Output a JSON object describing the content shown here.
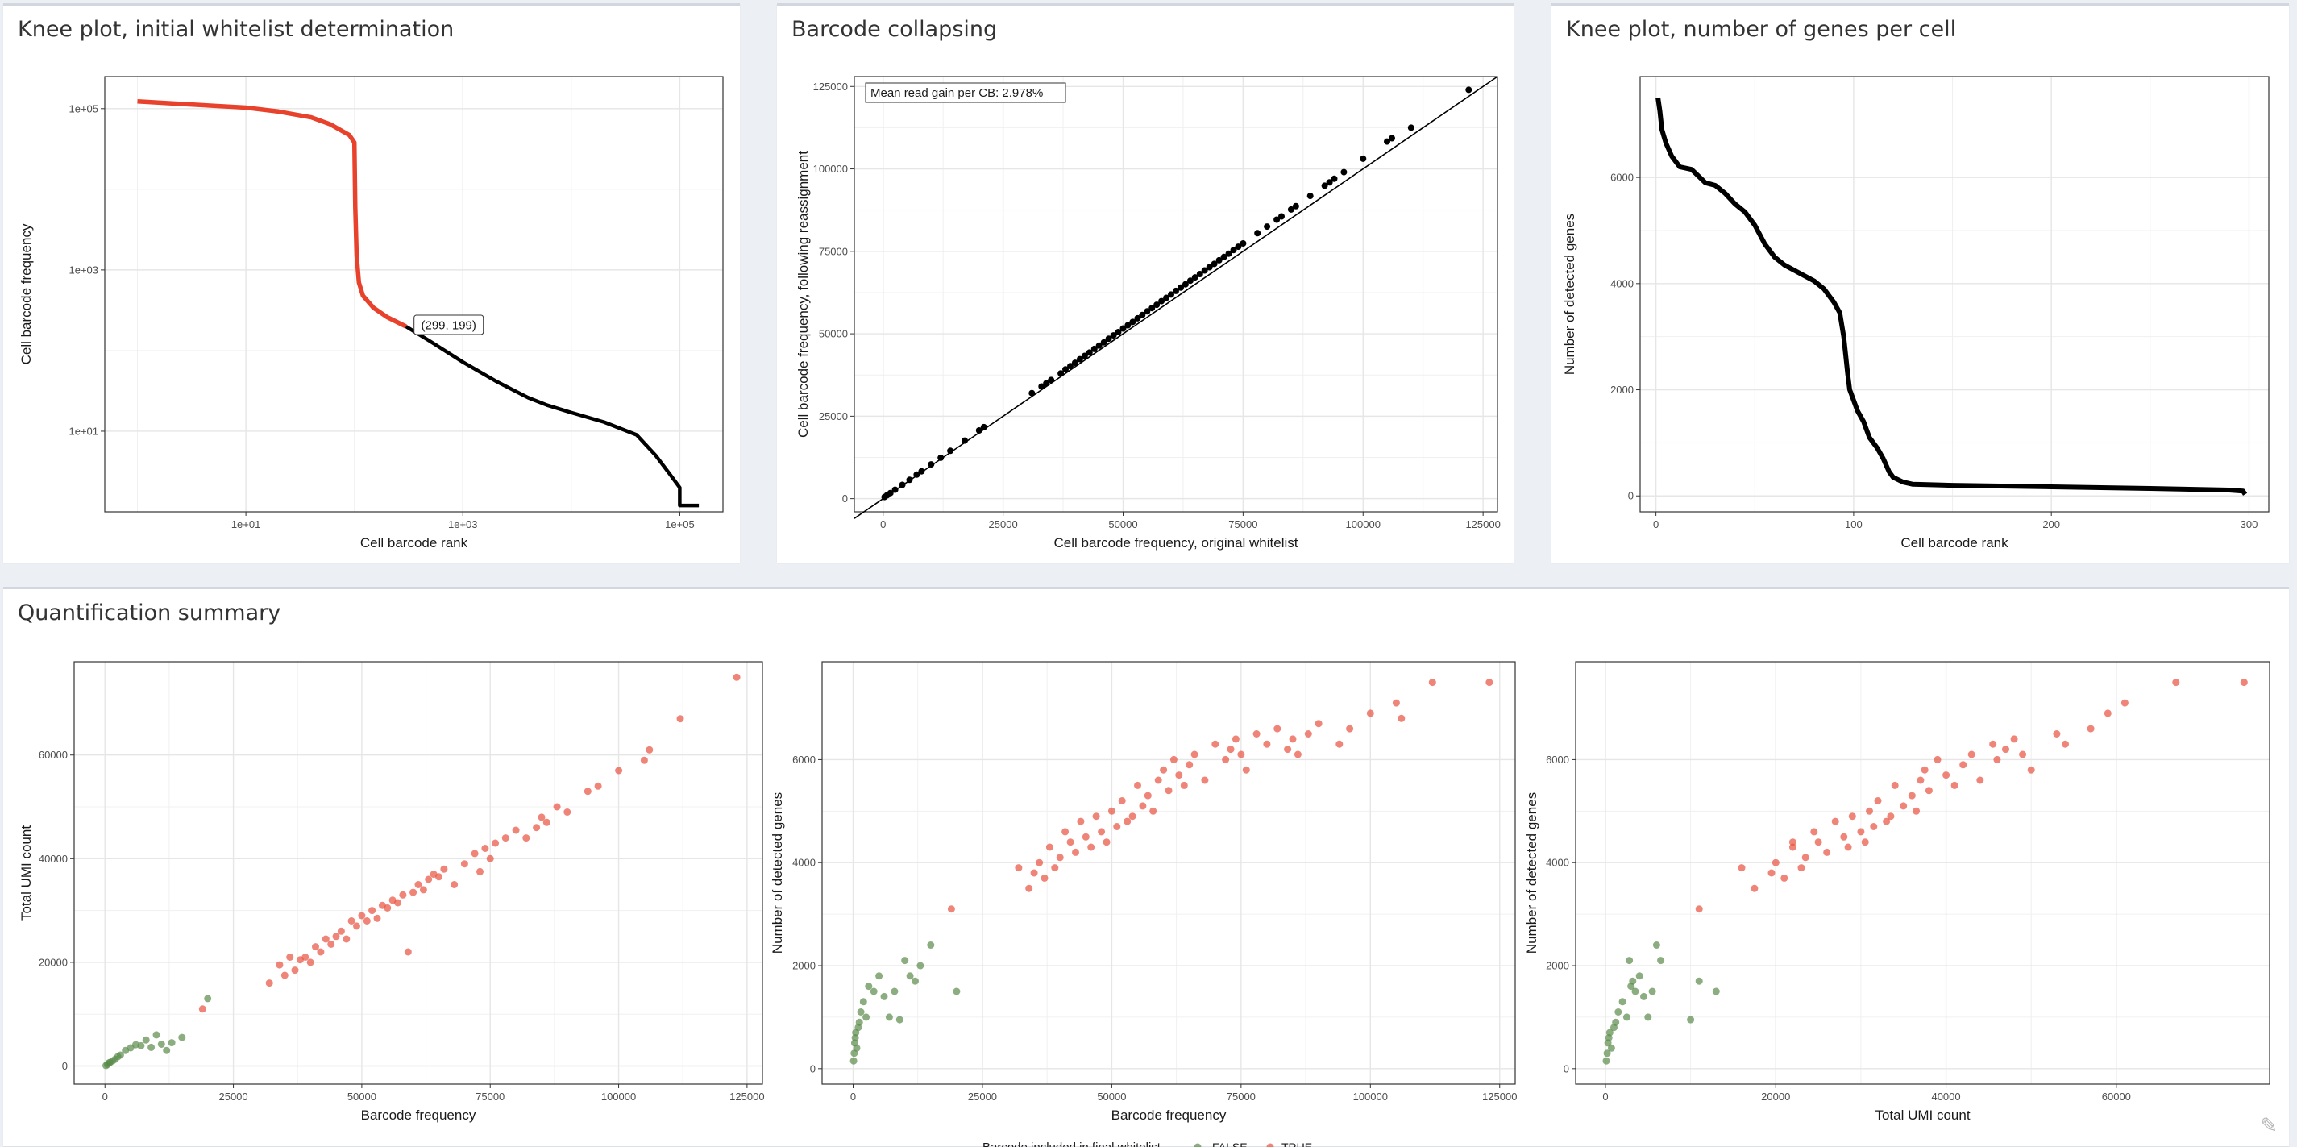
{
  "panels": {
    "knee1": {
      "title": "Knee plot, initial whitelist determination",
      "xlabel": "Cell barcode rank",
      "ylabel": "Cell barcode frequency",
      "annotation": "(299, 199)"
    },
    "collapse": {
      "title": "Barcode collapsing",
      "xlabel": "Cell barcode frequency, original whitelist",
      "ylabel": "Cell barcode frequency, following reassignment",
      "annotation": "Mean read gain per CB: 2.978%"
    },
    "knee2": {
      "title": "Knee plot, number of genes per cell",
      "xlabel": "Cell barcode rank",
      "ylabel": "Number of detected genes"
    },
    "quant": {
      "title": "Quantification summary",
      "legend_title": "Barcode included in final whitelist",
      "legend_false": "FALSE",
      "legend_true": "TRUE"
    }
  },
  "colors": {
    "true": "#e8513f",
    "false": "#5a8a4a",
    "line": "#000000",
    "highlight": "#e8412c"
  },
  "chart_data": [
    {
      "id": "knee1",
      "type": "line",
      "log_x": true,
      "log_y": true,
      "title": "Knee plot, initial whitelist determination",
      "xlabel": "Cell barcode rank",
      "ylabel": "Cell barcode frequency",
      "xlim": [
        0.5,
        250000
      ],
      "ylim": [
        1.0,
        250000
      ],
      "xticks": [
        10,
        1000,
        100000
      ],
      "xtick_labels": [
        "1e+01",
        "1e+03",
        "1e+05"
      ],
      "yticks": [
        10,
        1000,
        100000
      ],
      "ytick_labels": [
        "1e+01",
        "1e+03",
        "1e+05"
      ],
      "series": [
        {
          "x": [
            1,
            3,
            10,
            20,
            40,
            60,
            90,
            100,
            102,
            105,
            110,
            120,
            150,
            200,
            299
          ],
          "y": [
            123000,
            113000,
            103000,
            92000,
            78000,
            64000,
            47000,
            38000,
            6000,
            1500,
            700,
            480,
            340,
            260,
            199
          ]
        },
        {
          "x": [
            299,
            500,
            1000,
            2000,
            4000,
            6000,
            10000,
            20000,
            40000,
            60000,
            80000,
            100000,
            100000,
            150000
          ],
          "y": [
            199,
            130,
            72,
            42,
            26,
            21,
            17,
            13,
            9,
            5,
            3,
            2,
            1.2,
            1.2
          ]
        }
      ],
      "annotation": {
        "x": 299,
        "y": 199,
        "text": "(299, 199)"
      }
    },
    {
      "id": "collapse",
      "type": "scatter",
      "title": "Barcode collapsing",
      "xlabel": "Cell barcode frequency, original whitelist",
      "ylabel": "Cell barcode frequency, following reassignment",
      "xlim": [
        -6000,
        128000
      ],
      "ylim": [
        -4000,
        128000
      ],
      "xticks": [
        0,
        25000,
        50000,
        75000,
        100000,
        125000
      ],
      "yticks": [
        0,
        25000,
        50000,
        75000,
        100000,
        125000
      ],
      "annotation": "Mean read gain per CB: 2.978%",
      "x": [
        300,
        800,
        1500,
        2500,
        4000,
        5500,
        7000,
        8000,
        10000,
        12000,
        14000,
        17000,
        20000,
        21000,
        31000,
        33000,
        34000,
        35000,
        37000,
        38000,
        39000,
        40000,
        41000,
        42000,
        43000,
        44000,
        45000,
        46000,
        47000,
        48000,
        49000,
        50000,
        51000,
        52000,
        53000,
        54000,
        55000,
        56000,
        57000,
        58000,
        59000,
        60000,
        61000,
        62000,
        63000,
        64000,
        65000,
        66000,
        67000,
        68000,
        69000,
        70000,
        71000,
        72000,
        73000,
        74000,
        75000,
        78000,
        80000,
        82000,
        83000,
        85000,
        86000,
        89000,
        92000,
        93000,
        94000,
        96000,
        100000,
        105000,
        106000,
        110000,
        122000
      ],
      "y": [
        500,
        1000,
        1700,
        2700,
        4200,
        5700,
        7300,
        8300,
        10400,
        12400,
        14500,
        17600,
        20700,
        21700,
        32000,
        34000,
        35000,
        36000,
        38000,
        39200,
        40200,
        41200,
        42300,
        43300,
        44300,
        45400,
        46400,
        47400,
        48500,
        49500,
        50500,
        51600,
        52600,
        53600,
        54700,
        55700,
        56800,
        57800,
        58800,
        59900,
        60900,
        61900,
        63000,
        64000,
        65000,
        66100,
        67100,
        68100,
        69200,
        70200,
        71200,
        72300,
        73300,
        74300,
        75400,
        76400,
        77400,
        80500,
        82500,
        84600,
        85600,
        87700,
        88700,
        91800,
        94900,
        95900,
        97000,
        99000,
        103100,
        108300,
        109300,
        112500,
        124000
      ]
    },
    {
      "id": "knee2",
      "type": "line",
      "title": "Knee plot, number of genes per cell",
      "xlabel": "Cell barcode rank",
      "ylabel": "Number of detected genes",
      "xlim": [
        -8,
        310
      ],
      "ylim": [
        -300,
        7900
      ],
      "xticks": [
        0,
        100,
        200,
        300
      ],
      "yticks": [
        0,
        2000,
        4000,
        6000
      ],
      "x": [
        1,
        2,
        3,
        5,
        8,
        12,
        18,
        25,
        30,
        35,
        40,
        45,
        50,
        55,
        60,
        65,
        70,
        75,
        80,
        85,
        90,
        93,
        95,
        97,
        98,
        100,
        102,
        105,
        108,
        112,
        115,
        118,
        120,
        125,
        130,
        150,
        200,
        250,
        290,
        297,
        298
      ],
      "y": [
        7500,
        7250,
        6900,
        6650,
        6400,
        6200,
        6150,
        5900,
        5850,
        5700,
        5500,
        5350,
        5100,
        4750,
        4500,
        4350,
        4250,
        4150,
        4050,
        3900,
        3650,
        3450,
        3000,
        2300,
        2000,
        1800,
        1600,
        1400,
        1100,
        900,
        700,
        450,
        350,
        260,
        220,
        200,
        170,
        140,
        110,
        90,
        30
      ]
    },
    {
      "id": "quant1",
      "type": "scatter",
      "xlabel": "Barcode frequency",
      "ylabel": "Total UMI count",
      "xlim": [
        -6000,
        128000
      ],
      "ylim": [
        -3500,
        78000
      ],
      "xticks": [
        0,
        25000,
        50000,
        75000,
        100000,
        125000
      ],
      "yticks": [
        0,
        20000,
        40000,
        60000
      ],
      "series": [
        {
          "name": "FALSE",
          "x": [
            200,
            500,
            800,
            1000,
            1500,
            2000,
            2500,
            3000,
            4000,
            5000,
            6000,
            7000,
            8000,
            9000,
            10000,
            11000,
            12000,
            13000,
            15000,
            20000
          ],
          "y": [
            100,
            300,
            600,
            700,
            1000,
            1300,
            1800,
            2100,
            3000,
            3500,
            4100,
            3900,
            5000,
            3600,
            6000,
            4200,
            3000,
            4500,
            5500,
            13000
          ]
        },
        {
          "name": "TRUE",
          "x": [
            19000,
            32000,
            34000,
            35000,
            36000,
            37000,
            38000,
            39000,
            40000,
            41000,
            42000,
            43000,
            44000,
            45000,
            46000,
            47000,
            48000,
            49000,
            50000,
            51000,
            52000,
            53000,
            54000,
            55000,
            56000,
            57000,
            58000,
            59000,
            60000,
            61000,
            62000,
            63000,
            64000,
            65000,
            66000,
            68000,
            70000,
            72000,
            73000,
            74000,
            75000,
            76000,
            78000,
            80000,
            82000,
            84000,
            85000,
            86000,
            88000,
            90000,
            94000,
            96000,
            100000,
            105000,
            106000,
            112000,
            123000
          ],
          "y": [
            11000,
            16000,
            19500,
            17500,
            21000,
            18500,
            20500,
            21000,
            20000,
            23000,
            22000,
            24500,
            23500,
            25000,
            26000,
            24500,
            28000,
            27000,
            29000,
            28000,
            30000,
            28500,
            31000,
            30500,
            32000,
            31500,
            33000,
            22000,
            33500,
            35000,
            34000,
            36000,
            37000,
            36500,
            38000,
            35000,
            39000,
            41000,
            37500,
            42000,
            40000,
            43000,
            44000,
            45500,
            44000,
            46000,
            48000,
            47000,
            50000,
            49000,
            53000,
            54000,
            57000,
            59000,
            61000,
            67000,
            75000
          ]
        }
      ]
    },
    {
      "id": "quant2",
      "type": "scatter",
      "xlabel": "Barcode frequency",
      "ylabel": "Number of detected genes",
      "xlim": [
        -6000,
        128000
      ],
      "ylim": [
        -300,
        7900
      ],
      "xticks": [
        0,
        25000,
        50000,
        75000,
        100000,
        125000
      ],
      "yticks": [
        0,
        2000,
        4000,
        6000
      ],
      "series": [
        {
          "name": "FALSE",
          "x": [
            100,
            200,
            300,
            400,
            500,
            700,
            1000,
            1200,
            1500,
            2000,
            2500,
            3000,
            4000,
            5000,
            6000,
            7000,
            8000,
            9000,
            10000,
            11000,
            12000,
            13000,
            15000,
            20000
          ],
          "y": [
            150,
            300,
            500,
            600,
            700,
            400,
            800,
            900,
            1100,
            1300,
            1000,
            1600,
            1500,
            1800,
            1400,
            1000,
            1500,
            950,
            2100,
            1800,
            1700,
            2000,
            2400,
            1500
          ]
        },
        {
          "name": "TRUE",
          "x": [
            19000,
            32000,
            34000,
            35000,
            36000,
            37000,
            38000,
            39000,
            40000,
            41000,
            42000,
            43000,
            44000,
            45000,
            46000,
            47000,
            48000,
            49000,
            50000,
            51000,
            52000,
            53000,
            54000,
            55000,
            56000,
            57000,
            58000,
            59000,
            60000,
            61000,
            62000,
            63000,
            64000,
            65000,
            66000,
            68000,
            70000,
            72000,
            73000,
            74000,
            75000,
            76000,
            78000,
            80000,
            82000,
            84000,
            85000,
            86000,
            88000,
            90000,
            94000,
            96000,
            100000,
            105000,
            106000,
            112000,
            123000
          ],
          "y": [
            3100,
            3900,
            3500,
            3800,
            4000,
            3700,
            4300,
            3900,
            4100,
            4600,
            4400,
            4200,
            4800,
            4500,
            4300,
            4900,
            4600,
            4400,
            5000,
            4700,
            5200,
            4800,
            4900,
            5500,
            5100,
            5300,
            5000,
            5600,
            5800,
            5400,
            6000,
            5700,
            5500,
            5900,
            6100,
            5600,
            6300,
            6000,
            6200,
            6400,
            6100,
            5800,
            6500,
            6300,
            6600,
            6200,
            6400,
            6100,
            6500,
            6700,
            6300,
            6600,
            6900,
            7100,
            6800,
            7500,
            7500
          ]
        }
      ]
    },
    {
      "id": "quant3",
      "type": "scatter",
      "xlabel": "Total UMI count",
      "ylabel": "Number of detected genes",
      "xlim": [
        -3500,
        78000
      ],
      "ylim": [
        -300,
        7900
      ],
      "xticks": [
        0,
        20000,
        40000,
        60000
      ],
      "yticks": [
        0,
        2000,
        4000,
        6000
      ],
      "series": [
        {
          "name": "FALSE",
          "x": [
            100,
            200,
            300,
            400,
            500,
            700,
            1000,
            1200,
            1500,
            2000,
            2500,
            3000,
            3500,
            4000,
            4500,
            5000,
            5500,
            6000,
            2800,
            3200,
            6500,
            13000,
            11000,
            10000
          ],
          "y": [
            150,
            300,
            500,
            600,
            700,
            400,
            800,
            900,
            1100,
            1300,
            1000,
            1600,
            1500,
            1800,
            1400,
            1000,
            1500,
            2400,
            2100,
            1700,
            2100,
            1500,
            1700,
            950
          ]
        },
        {
          "name": "TRUE",
          "x": [
            11000,
            16000,
            17500,
            19500,
            20000,
            21000,
            22000,
            23000,
            23500,
            24500,
            25000,
            26000,
            27000,
            28000,
            28500,
            29000,
            30000,
            30500,
            31000,
            31500,
            32000,
            33000,
            33500,
            34000,
            35000,
            36000,
            36500,
            37000,
            37500,
            38000,
            39000,
            40000,
            41000,
            42000,
            43000,
            44000,
            45500,
            46000,
            47000,
            48000,
            49000,
            50000,
            53000,
            54000,
            57000,
            59000,
            61000,
            67000,
            75000,
            22000
          ],
          "y": [
            3100,
            3900,
            3500,
            3800,
            4000,
            3700,
            4300,
            3900,
            4100,
            4600,
            4400,
            4200,
            4800,
            4500,
            4300,
            4900,
            4600,
            4400,
            5000,
            4700,
            5200,
            4800,
            4900,
            5500,
            5100,
            5300,
            5000,
            5600,
            5800,
            5400,
            6000,
            5700,
            5500,
            5900,
            6100,
            5600,
            6300,
            6000,
            6200,
            6400,
            6100,
            5800,
            6500,
            6300,
            6600,
            6900,
            7100,
            7500,
            7500,
            4400
          ]
        }
      ]
    }
  ]
}
